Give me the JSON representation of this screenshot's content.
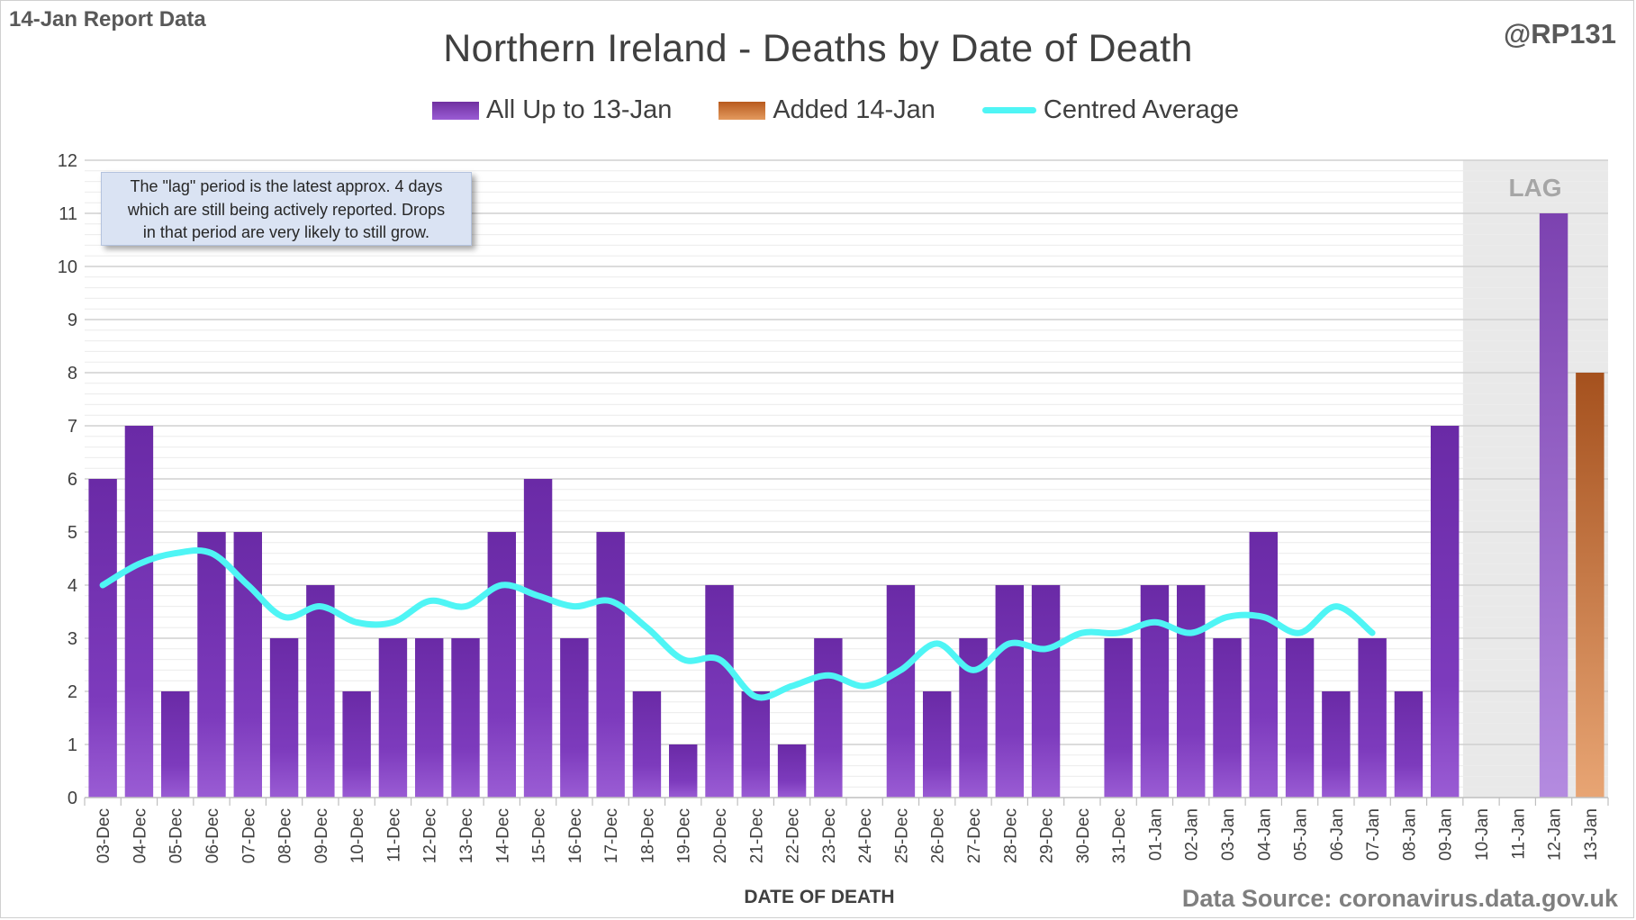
{
  "header": {
    "report_label": "14-Jan Report Data",
    "handle": "@RP131"
  },
  "annotation": {
    "note_lines": [
      "The \"lag\" period is the latest approx. 4 days",
      "which are still being actively reported.  Drops",
      "in that period are very likely to still grow."
    ],
    "lag_label": "LAG"
  },
  "footer": {
    "source": "Data Source: coronavirus.data.gov.uk"
  },
  "chart_data": {
    "type": "bar",
    "title": "Northern Ireland - Deaths by Date of Death",
    "xlabel": "DATE OF DEATH",
    "ylabel": "",
    "ylim": [
      0,
      12
    ],
    "yticks": [
      0,
      1,
      2,
      3,
      4,
      5,
      6,
      7,
      8,
      9,
      10,
      11,
      12
    ],
    "grid": true,
    "legend_position": "top",
    "categories": [
      "03-Dec",
      "04-Dec",
      "05-Dec",
      "06-Dec",
      "07-Dec",
      "08-Dec",
      "09-Dec",
      "10-Dec",
      "11-Dec",
      "12-Dec",
      "13-Dec",
      "14-Dec",
      "15-Dec",
      "16-Dec",
      "17-Dec",
      "18-Dec",
      "19-Dec",
      "20-Dec",
      "21-Dec",
      "22-Dec",
      "23-Dec",
      "24-Dec",
      "25-Dec",
      "26-Dec",
      "27-Dec",
      "28-Dec",
      "29-Dec",
      "30-Dec",
      "31-Dec",
      "01-Jan",
      "02-Jan",
      "03-Jan",
      "04-Jan",
      "05-Jan",
      "06-Jan",
      "07-Jan",
      "08-Jan",
      "09-Jan",
      "10-Jan",
      "11-Jan",
      "12-Jan",
      "13-Jan"
    ],
    "lag_categories": [
      "10-Jan",
      "11-Jan",
      "12-Jan",
      "13-Jan"
    ],
    "series": [
      {
        "name": "All Up to 13-Jan",
        "kind": "bar",
        "color": "#7030a0",
        "values": [
          6,
          7,
          2,
          5,
          5,
          3,
          4,
          2,
          3,
          3,
          3,
          5,
          6,
          3,
          5,
          2,
          1,
          4,
          2,
          1,
          3,
          0,
          4,
          2,
          3,
          4,
          4,
          0,
          3,
          4,
          4,
          3,
          5,
          3,
          2,
          3,
          2,
          7,
          0,
          0,
          11,
          0
        ]
      },
      {
        "name": "Added 14-Jan",
        "kind": "bar",
        "color": "#c55a11",
        "values": [
          0,
          0,
          0,
          0,
          0,
          0,
          0,
          0,
          0,
          0,
          0,
          0,
          0,
          0,
          0,
          0,
          0,
          0,
          0,
          0,
          0,
          0,
          0,
          0,
          0,
          0,
          0,
          0,
          0,
          0,
          0,
          0,
          0,
          0,
          0,
          0,
          0,
          0,
          0,
          0,
          0,
          8
        ]
      },
      {
        "name": "Centred Average",
        "kind": "line",
        "color": "#4ff5f5",
        "values": [
          4.0,
          4.4,
          4.6,
          4.6,
          4.0,
          3.4,
          3.6,
          3.3,
          3.3,
          3.7,
          3.6,
          4.0,
          3.8,
          3.6,
          3.7,
          3.2,
          2.6,
          2.6,
          1.9,
          2.1,
          2.3,
          2.1,
          2.4,
          2.9,
          2.4,
          2.9,
          2.8,
          3.1,
          3.1,
          3.3,
          3.1,
          3.4,
          3.4,
          3.1,
          3.6,
          3.1,
          null,
          null,
          null,
          null,
          null,
          null
        ]
      }
    ]
  }
}
